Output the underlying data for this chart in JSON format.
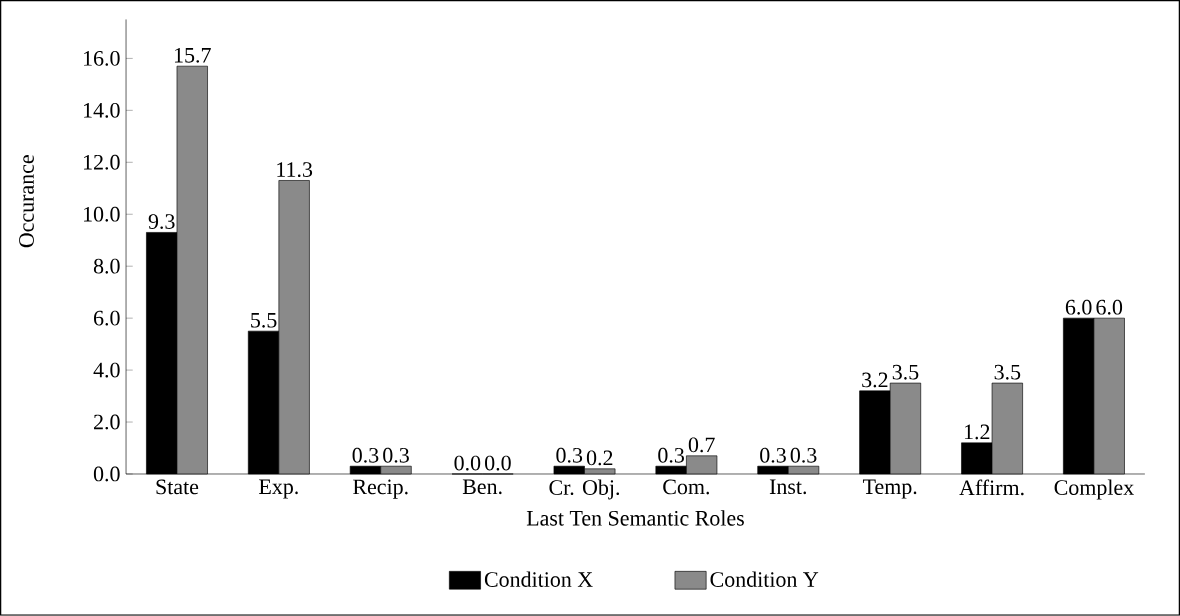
{
  "chart_data": {
    "type": "bar",
    "xlabel": "Last Ten Semantic Roles",
    "ylabel": "Occurance",
    "categories": [
      "State",
      "Exp.",
      "Recip.",
      "Ben.",
      "Cr. Obj.",
      "Com.",
      "Inst.",
      "Temp.",
      "Affirm.",
      "Complex"
    ],
    "series": [
      {
        "name": "Condition X",
        "color": "#000000",
        "values": [
          9.3,
          5.5,
          0.3,
          0.0,
          0.3,
          0.3,
          0.3,
          3.2,
          1.2,
          6.0
        ],
        "value_labels": [
          "9.3",
          "5.5",
          "0.3",
          "0.0",
          "0.3",
          "0.3",
          "0.3",
          "3.2",
          "1.2",
          "6.0"
        ]
      },
      {
        "name": "Condition Y",
        "color": "#8a8a8a",
        "values": [
          15.7,
          11.3,
          0.3,
          0.0,
          0.2,
          0.7,
          0.3,
          3.5,
          3.5,
          6.0
        ],
        "value_labels": [
          "15.7",
          "11.3",
          "0.3",
          "0.0",
          "0.2",
          "0.7",
          "0.3",
          "3.5",
          "3.5",
          "6.0"
        ]
      }
    ],
    "ylim": [
      0,
      17.5
    ],
    "yticks": [
      {
        "value": 0,
        "label": "0.0"
      },
      {
        "value": 2,
        "label": "2.0"
      },
      {
        "value": 4,
        "label": "4.0"
      },
      {
        "value": 6,
        "label": "6.0"
      },
      {
        "value": 8,
        "label": "8.0"
      },
      {
        "value": 10,
        "label": "10.0"
      },
      {
        "value": 12,
        "label": "12.0"
      },
      {
        "value": 14,
        "label": "14.0"
      },
      {
        "value": 16,
        "label": "16.0"
      }
    ],
    "grid": false,
    "legend": "bottom"
  }
}
